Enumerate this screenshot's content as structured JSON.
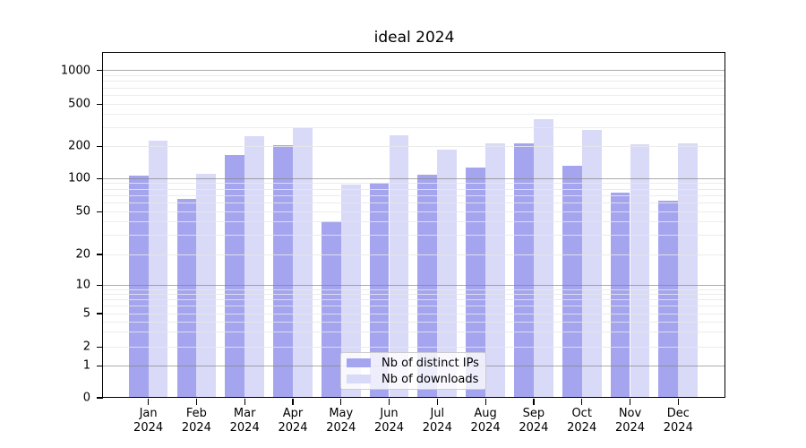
{
  "chart_data": {
    "type": "bar",
    "title": "ideal 2024",
    "categories": [
      "Jan 2024",
      "Feb 2024",
      "Mar 2024",
      "Apr 2024",
      "May 2024",
      "Jun 2024",
      "Jul 2024",
      "Aug 2024",
      "Sep 2024",
      "Oct 2024",
      "Nov 2024",
      "Dec 2024"
    ],
    "series": [
      {
        "name": "Nb of distinct IPs",
        "color": "#a5a5ef",
        "values": [
          107,
          65,
          165,
          205,
          41,
          92,
          108,
          127,
          215,
          131,
          75,
          63
        ]
      },
      {
        "name": "Nb of downloads",
        "color": "#d9d9f8",
        "values": [
          225,
          110,
          250,
          300,
          88,
          255,
          185,
          215,
          360,
          287,
          210,
          215
        ]
      }
    ],
    "yticks": [
      1000,
      500,
      200,
      100,
      50,
      20,
      10,
      5,
      2,
      1,
      0
    ],
    "ylim": [
      0,
      1400
    ],
    "yscale": "symlog",
    "xlabel": "",
    "ylabel": "",
    "grid": true,
    "legend_position": "lower center"
  }
}
